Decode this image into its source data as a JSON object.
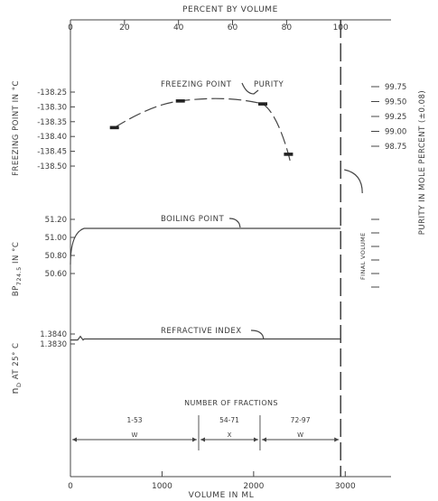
{
  "chart_data": {
    "type": "line",
    "top_axis": {
      "label": "PERCENT BY VOLUME",
      "ticks": [
        "0",
        "20",
        "40",
        "60",
        "80",
        "100"
      ],
      "values": [
        0,
        20,
        40,
        60,
        80,
        100
      ]
    },
    "bottom_axis": {
      "label": "VOLUME IN ML",
      "ticks": [
        "0",
        "1000",
        "2000",
        "3000"
      ],
      "values": [
        0,
        1000,
        2000,
        3000
      ],
      "range": [
        0,
        3500
      ]
    },
    "left_axes": [
      {
        "label": "FREEZING POINT IN °C",
        "ticks": [
          "-138.25",
          "-138.30",
          "-138.35",
          "-138.40",
          "-138.45",
          "-138.50"
        ],
        "values": [
          -138.25,
          -138.3,
          -138.35,
          -138.4,
          -138.45,
          -138.5
        ]
      },
      {
        "label": "BP 724.5 IN °C",
        "label_main": "BP",
        "label_sub": "724.5",
        "label_rest": " IN °C",
        "ticks": [
          "51.20",
          "51.00",
          "50.80",
          "50.60"
        ],
        "values": [
          51.2,
          51.0,
          50.8,
          50.6
        ]
      },
      {
        "label": "nD AT 25° C",
        "label_main": "n",
        "label_sub": "D",
        "label_rest": " AT 25° C",
        "ticks": [
          "1.3840",
          "1.3830"
        ],
        "values": [
          1.384,
          1.383
        ]
      }
    ],
    "right_axis": {
      "label": "PURITY IN MOLE PERCENT (±0.08)",
      "ticks": [
        "99.75",
        "99.50",
        "99.25",
        "99.00",
        "98.75"
      ],
      "values": [
        99.75,
        99.5,
        99.25,
        99.0,
        98.75
      ]
    },
    "series": [
      {
        "name": "FREEZING POINT",
        "label": "FREEZING POINT",
        "label2": "PURITY",
        "x": [
          480,
          1200,
          2100,
          2380
        ],
        "y": [
          -138.37,
          -138.28,
          -138.29,
          -138.46
        ],
        "points": [
          [
            480,
            -138.37
          ],
          [
            1200,
            -138.28
          ],
          [
            2100,
            -138.29
          ],
          [
            2380,
            -138.46
          ]
        ]
      },
      {
        "name": "BOILING POINT",
        "label": "BOILING POINT",
        "x": [
          0,
          60,
          150,
          2950
        ],
        "y": [
          50.7,
          51.05,
          51.1,
          51.1
        ]
      },
      {
        "name": "REFRACTIVE INDEX",
        "label": "REFRACTIVE INDEX",
        "x": [
          0,
          150,
          2950
        ],
        "y": [
          1.3834,
          1.3835,
          1.3835
        ]
      }
    ],
    "annotations": {
      "final_volume": {
        "text": "FINAL VOLUME",
        "x": 2950
      },
      "fractions_title": "NUMBER OF FRACTIONS",
      "fractions": [
        {
          "range": "1-53",
          "grade": "W",
          "x0": 0,
          "x1": 1400
        },
        {
          "range": "54-71",
          "grade": "X",
          "x0": 1400,
          "x1": 2070
        },
        {
          "range": "72-97",
          "grade": "W",
          "x0": 2070,
          "x1": 2950
        }
      ]
    },
    "grid": false,
    "legend": "none"
  }
}
